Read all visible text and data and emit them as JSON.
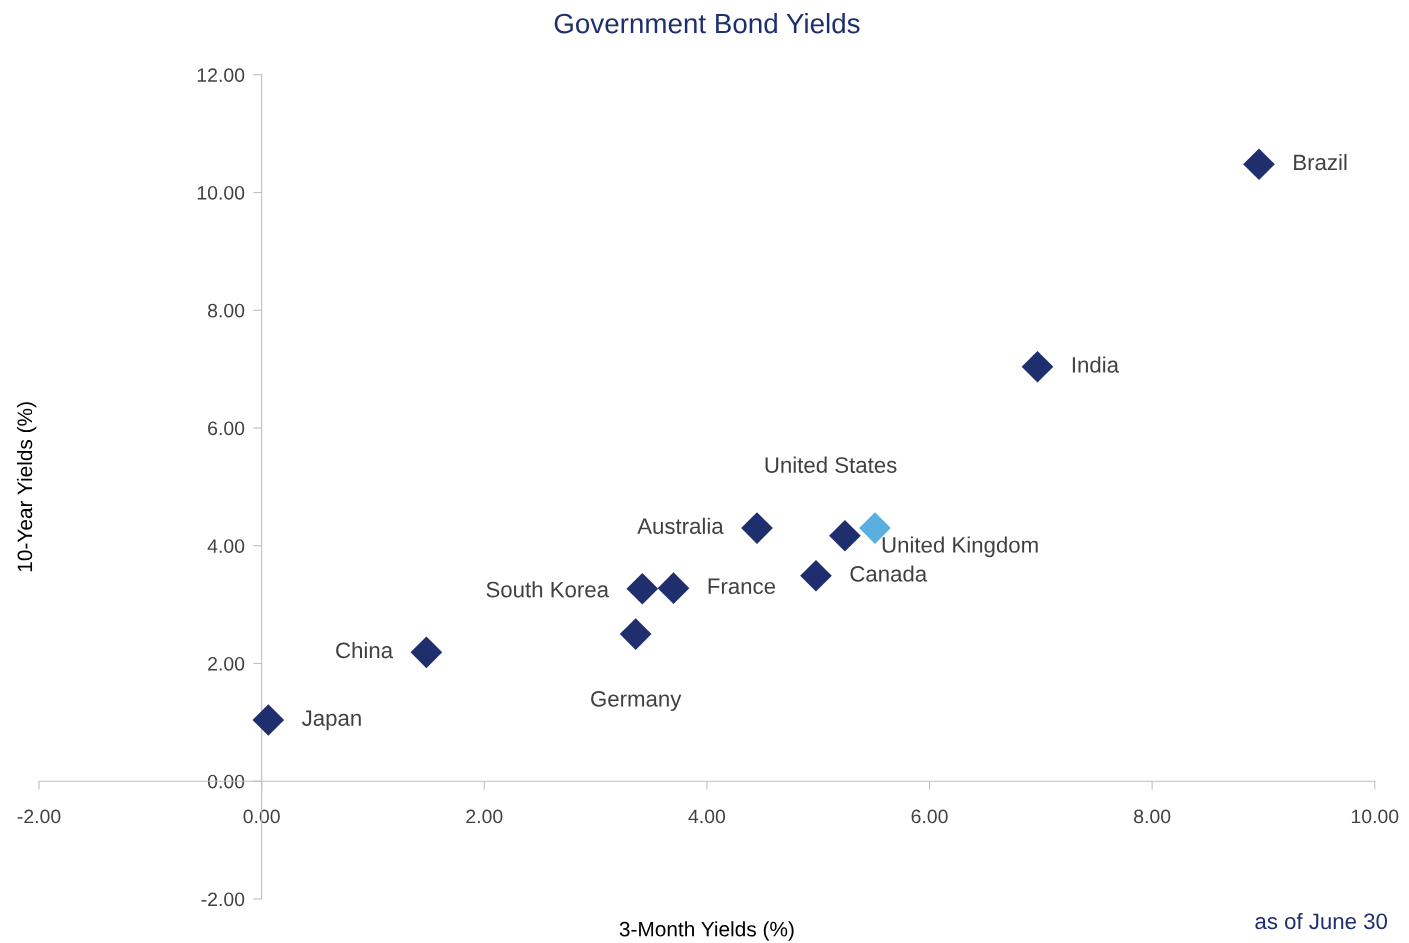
{
  "chart_data": {
    "type": "scatter",
    "title": "Government Bond Yields",
    "xlabel": "3-Month Yields (%)",
    "ylabel": "10-Year Yields (%)",
    "x": [
      8.96,
      6.97,
      5.51,
      5.24,
      4.98,
      4.45,
      3.7,
      3.42,
      3.36,
      1.48,
      0.06
    ],
    "values": [
      10.48,
      7.04,
      4.3,
      4.17,
      3.49,
      4.3,
      3.28,
      3.27,
      2.5,
      2.19,
      1.04
    ],
    "colors": [
      "#1f2f6e",
      "#1f2f6e",
      "#5aaee0",
      "#1f2f6e",
      "#1f2f6e",
      "#1f2f6e",
      "#1f2f6e",
      "#1f2f6e",
      "#1f2f6e",
      "#1f2f6e",
      "#1f2f6e"
    ],
    "marker": "diamond",
    "grid": false,
    "legend": false,
    "xlim": [
      -2,
      10
    ],
    "ylim": [
      -2,
      12
    ],
    "xticks": [
      {
        "value": -2,
        "label": "-2.00"
      },
      {
        "value": 0,
        "label": "0.00"
      },
      {
        "value": 2,
        "label": "2.00"
      },
      {
        "value": 4,
        "label": "4.00"
      },
      {
        "value": 6,
        "label": "6.00"
      },
      {
        "value": 8,
        "label": "8.00"
      },
      {
        "value": 10,
        "label": "10.00"
      }
    ],
    "yticks": [
      {
        "value": -2,
        "label": "-2.00"
      },
      {
        "value": 0,
        "label": "0.00"
      },
      {
        "value": 2,
        "label": "2.00"
      },
      {
        "value": 4,
        "label": "4.00"
      },
      {
        "value": 6,
        "label": "6.00"
      },
      {
        "value": 8,
        "label": "8.00"
      },
      {
        "value": 10,
        "label": "10.00"
      },
      {
        "value": 12,
        "label": "12.00"
      }
    ],
    "annotations": [
      {
        "text": "Brazil",
        "x": 8.96,
        "y": 10.48
      },
      {
        "text": "India",
        "x": 6.97,
        "y": 7.04
      },
      {
        "text": "United States",
        "x": 5.51,
        "y": 4.3
      },
      {
        "text": "United Kingdom",
        "x": 5.24,
        "y": 4.17
      },
      {
        "text": "Canada",
        "x": 4.98,
        "y": 3.49
      },
      {
        "text": "Australia",
        "x": 4.45,
        "y": 4.3
      },
      {
        "text": "France",
        "x": 3.7,
        "y": 3.28
      },
      {
        "text": "South Korea",
        "x": 3.42,
        "y": 3.27
      },
      {
        "text": "Germany",
        "x": 3.36,
        "y": 2.5
      },
      {
        "text": "China",
        "x": 1.48,
        "y": 2.19
      },
      {
        "text": "Japan",
        "x": 0.06,
        "y": 1.04
      },
      "as of June 30"
    ]
  }
}
